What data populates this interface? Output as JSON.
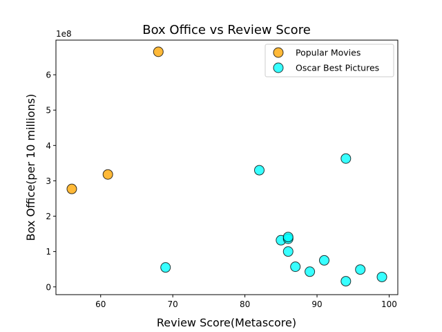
{
  "chart_data": {
    "type": "scatter",
    "title": "Box Office vs Review Score",
    "xlabel": "Review Score(Metascore)",
    "ylabel": "Box Office(per 10 millions)",
    "y_offset_label": "1e8",
    "xlim": [
      53.8,
      101.2
    ],
    "ylim": [
      -0.22,
      6.98
    ],
    "x_ticks": [
      60,
      70,
      80,
      90,
      100
    ],
    "y_ticks": [
      0,
      1,
      2,
      3,
      4,
      5,
      6
    ],
    "grid": false,
    "legend_position": "top-right",
    "series": [
      {
        "name": "Popular Movies",
        "color": "#FFA500",
        "points": [
          {
            "x": 56,
            "y": 2.77
          },
          {
            "x": 61,
            "y": 3.18
          },
          {
            "x": 68,
            "y": 6.65
          }
        ]
      },
      {
        "name": "Oscar Best Pictures",
        "color": "#00FFFF",
        "points": [
          {
            "x": 69,
            "y": 0.55
          },
          {
            "x": 82,
            "y": 3.3
          },
          {
            "x": 85,
            "y": 1.32
          },
          {
            "x": 86,
            "y": 1.36
          },
          {
            "x": 86,
            "y": 1.41
          },
          {
            "x": 86,
            "y": 1.0
          },
          {
            "x": 87,
            "y": 0.57
          },
          {
            "x": 89,
            "y": 0.43
          },
          {
            "x": 91,
            "y": 0.75
          },
          {
            "x": 94,
            "y": 3.63
          },
          {
            "x": 94,
            "y": 0.16
          },
          {
            "x": 96,
            "y": 0.49
          },
          {
            "x": 99,
            "y": 0.28
          }
        ]
      }
    ]
  }
}
